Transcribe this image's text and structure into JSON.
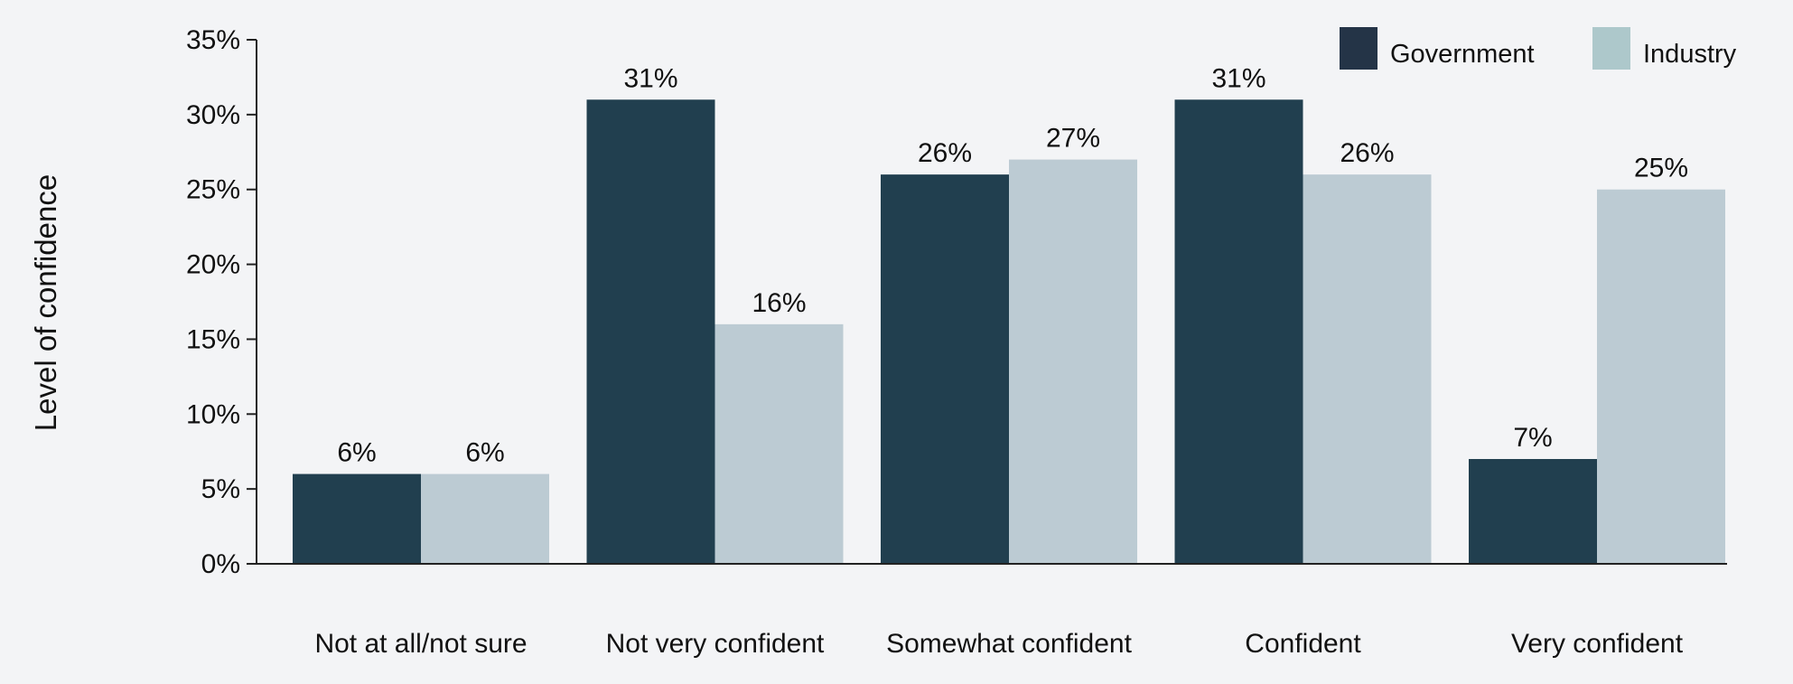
{
  "chart_data": {
    "type": "bar",
    "title": "",
    "xlabel": "",
    "ylabel": "Level of confidence",
    "ylim": [
      0,
      35
    ],
    "yticks": [
      "0%",
      "5%",
      "10%",
      "15%",
      "20%",
      "25%",
      "30%",
      "35%"
    ],
    "ytick_values": [
      0,
      5,
      10,
      15,
      20,
      25,
      30,
      35
    ],
    "grid": false,
    "legend_position": "top-right",
    "categories": [
      "Not at all/not sure",
      "Not very confident",
      "Somewhat confident",
      "Confident",
      "Very confident"
    ],
    "series": [
      {
        "name": "Government",
        "color": "#213f4f",
        "legend_color": "#243447",
        "values": [
          6,
          31,
          26,
          31,
          7
        ],
        "labels": [
          "6%",
          "31%",
          "26%",
          "31%",
          "7%"
        ]
      },
      {
        "name": "Industry",
        "color": "#bccbd3",
        "legend_color": "#adc8cb",
        "values": [
          6,
          16,
          27,
          26,
          25
        ],
        "labels": [
          "6%",
          "16%",
          "27%",
          "26%",
          "25%"
        ]
      }
    ]
  }
}
